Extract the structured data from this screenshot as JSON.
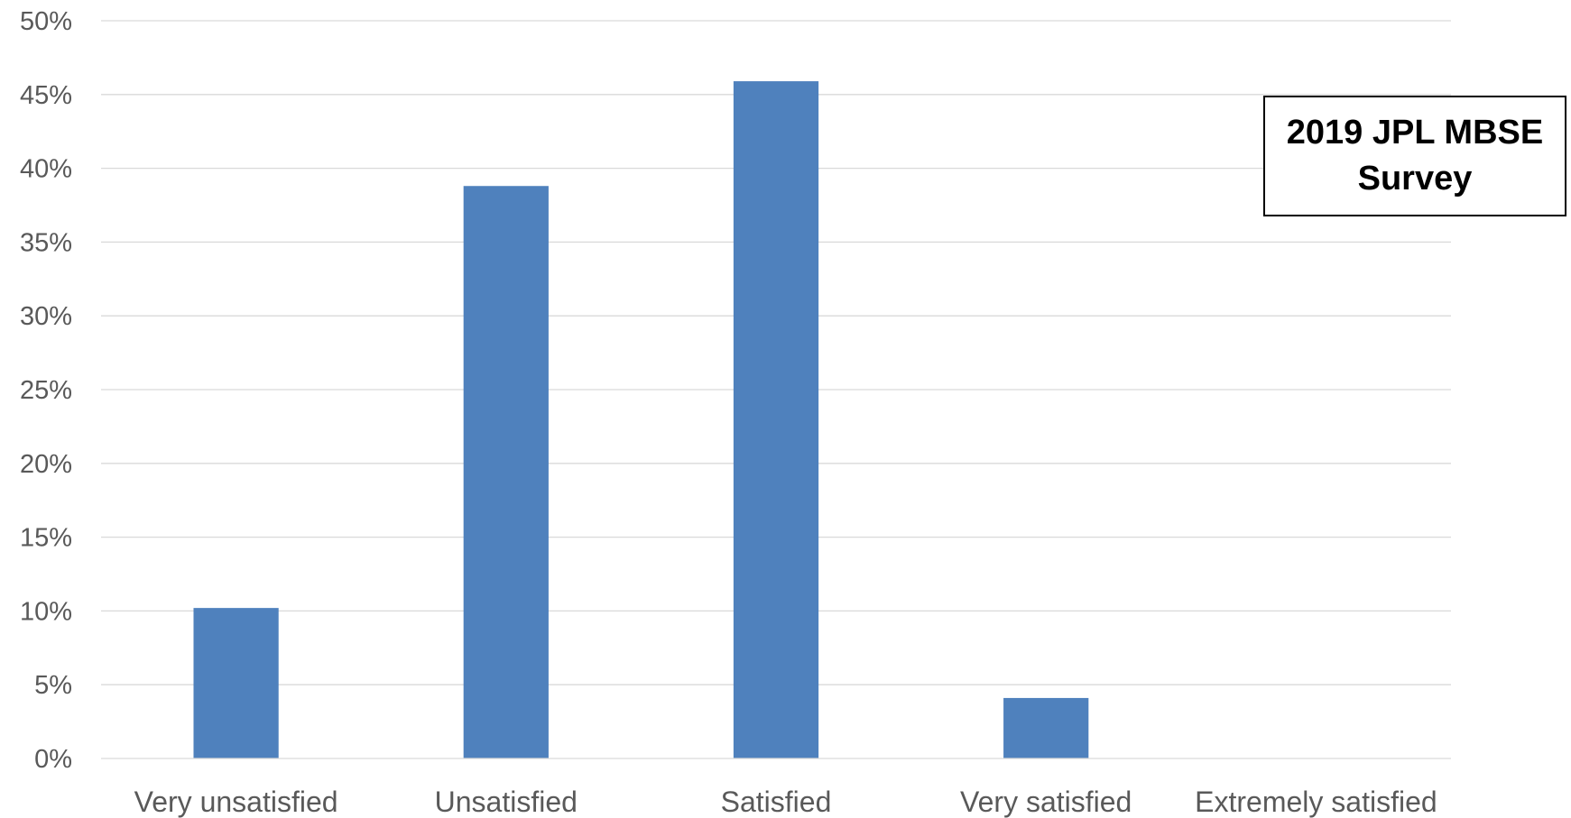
{
  "chart_data": {
    "type": "bar",
    "title": "2019 JPL MBSE Survey",
    "categories": [
      "Very unsatisfied",
      "Unsatisfied",
      "Satisfied",
      "Very satisfied",
      "Extremely satisfied"
    ],
    "values": [
      10.2,
      38.8,
      45.9,
      4.1,
      0
    ],
    "value_unit": "%",
    "ylim": [
      0,
      50
    ],
    "y_ticks": [
      "0%",
      "5%",
      "10%",
      "15%",
      "20%",
      "25%",
      "30%",
      "35%",
      "40%",
      "45%",
      "50%"
    ],
    "xlabel": "",
    "ylabel": "",
    "grid": true,
    "legend": "none",
    "bar_color": "#4f81bd"
  }
}
